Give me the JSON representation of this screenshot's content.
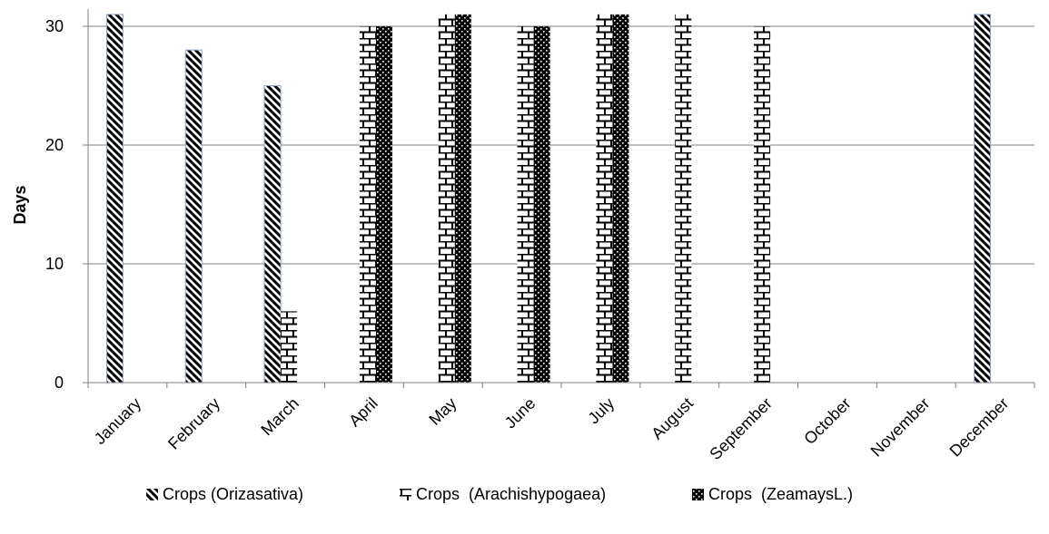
{
  "chart_data": {
    "type": "bar",
    "title": "",
    "xlabel": "",
    "ylabel": "Days",
    "ylim": [
      0,
      30
    ],
    "yticks": [
      0,
      10,
      20,
      30
    ],
    "grid": true,
    "legend_position": "bottom",
    "categories": [
      "January",
      "February",
      "March",
      "April",
      "May",
      "June",
      "July",
      "August",
      "September",
      "October",
      "November",
      "December"
    ],
    "series": [
      {
        "name": "Crops (Orizasativa)",
        "pattern": "diagonal-hatch",
        "values": [
          31,
          28,
          25,
          0,
          0,
          0,
          0,
          0,
          0,
          0,
          0,
          31
        ]
      },
      {
        "name": "Crops  (Arachishypogaea)",
        "pattern": "brick",
        "values": [
          0,
          0,
          6,
          30,
          31,
          30,
          31,
          31,
          30,
          0,
          0,
          0
        ]
      },
      {
        "name": "Crops  (ZeamaysL.)",
        "pattern": "dark-dotted",
        "values": [
          0,
          0,
          0,
          30,
          31,
          30,
          31,
          0,
          0,
          0,
          0,
          0
        ]
      }
    ],
    "colors": {
      "axis": "#808080",
      "grid": "#808080",
      "bar_outline": "#8fa9d6",
      "ink": "#000000"
    }
  }
}
